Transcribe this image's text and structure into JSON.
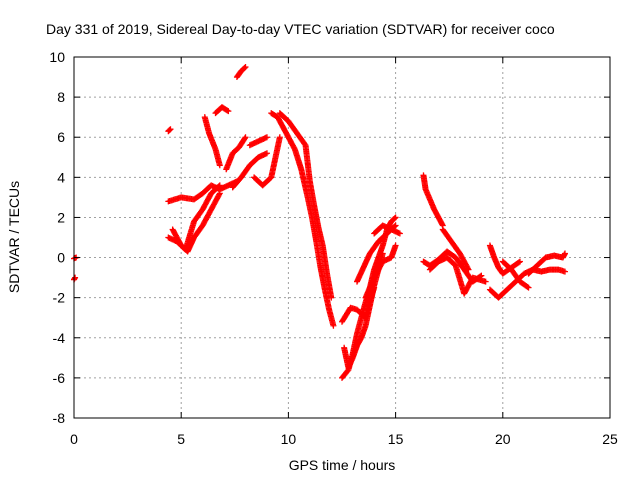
{
  "chart_data": {
    "type": "scatter",
    "title": "Day 331 of 2019, Sidereal Day-to-day VTEC variation (SDTVAR) for receiver coco",
    "xlabel": "GPS time / hours",
    "ylabel": "SDTVAR / TECUs",
    "xlim": [
      0,
      25
    ],
    "ylim": [
      -8,
      10
    ],
    "xticks": [
      0,
      5,
      10,
      15,
      20,
      25
    ],
    "yticks": [
      -8,
      -6,
      -4,
      -2,
      0,
      2,
      4,
      6,
      8,
      10
    ],
    "grid": true,
    "marker": "+",
    "color": "#ff0000",
    "series": [
      {
        "segments": [
          [
            [
              0.0,
              -1.1
            ],
            [
              0.05,
              -1.0
            ]
          ],
          [
            [
              0.0,
              -0.05
            ],
            [
              0.1,
              0.0
            ]
          ],
          [
            [
              4.4,
              6.3
            ],
            [
              4.5,
              6.4
            ]
          ],
          [
            [
              4.4,
              2.8
            ],
            [
              5.0,
              3.0
            ],
            [
              5.6,
              2.9
            ],
            [
              6.0,
              3.2
            ],
            [
              6.4,
              3.6
            ],
            [
              6.8,
              3.4
            ],
            [
              7.2,
              3.6
            ],
            [
              7.6,
              3.8
            ]
          ],
          [
            [
              4.4,
              1.0
            ],
            [
              4.8,
              0.8
            ],
            [
              5.2,
              0.4
            ],
            [
              5.6,
              1.8
            ],
            [
              6.0,
              2.4
            ],
            [
              6.4,
              3.2
            ],
            [
              6.8,
              3.6
            ]
          ],
          [
            [
              4.6,
              1.4
            ],
            [
              5.0,
              0.6
            ],
            [
              5.3,
              0.3
            ],
            [
              5.6,
              1.0
            ],
            [
              6.0,
              1.6
            ],
            [
              6.4,
              2.4
            ],
            [
              6.8,
              3.2
            ]
          ],
          [
            [
              6.1,
              7.0
            ],
            [
              6.3,
              6.2
            ],
            [
              6.6,
              5.4
            ],
            [
              6.8,
              4.6
            ]
          ],
          [
            [
              6.6,
              7.2
            ],
            [
              6.9,
              7.5
            ],
            [
              7.2,
              7.3
            ]
          ],
          [
            [
              7.1,
              4.4
            ],
            [
              7.4,
              5.2
            ],
            [
              7.7,
              5.5
            ],
            [
              8.0,
              6.0
            ]
          ],
          [
            [
              7.6,
              9.0
            ],
            [
              7.8,
              9.3
            ],
            [
              8.0,
              9.5
            ]
          ],
          [
            [
              7.4,
              3.5
            ],
            [
              7.8,
              4.0
            ],
            [
              8.2,
              4.6
            ],
            [
              8.6,
              5.0
            ],
            [
              9.0,
              5.2
            ]
          ],
          [
            [
              8.2,
              5.6
            ],
            [
              8.6,
              5.8
            ],
            [
              9.0,
              6.0
            ]
          ],
          [
            [
              8.4,
              4.0
            ],
            [
              8.8,
              3.6
            ],
            [
              9.2,
              4.0
            ],
            [
              9.6,
              6.0
            ]
          ],
          [
            [
              9.2,
              7.2
            ],
            [
              9.5,
              7.0
            ],
            [
              9.8,
              6.4
            ],
            [
              10.0,
              6.0
            ],
            [
              10.3,
              5.4
            ],
            [
              10.6,
              4.4
            ],
            [
              10.9,
              3.0
            ],
            [
              11.1,
              2.0
            ],
            [
              11.3,
              0.8
            ],
            [
              11.5,
              -0.5
            ],
            [
              11.7,
              -1.6
            ],
            [
              11.9,
              -2.6
            ],
            [
              12.1,
              -3.4
            ]
          ],
          [
            [
              9.6,
              7.2
            ],
            [
              10.0,
              6.8
            ],
            [
              10.4,
              6.2
            ],
            [
              10.8,
              5.6
            ],
            [
              11.0,
              3.8
            ],
            [
              11.2,
              2.6
            ],
            [
              11.4,
              1.5
            ],
            [
              11.6,
              0.6
            ],
            [
              11.8,
              -0.8
            ],
            [
              12.0,
              -2.0
            ]
          ],
          [
            [
              12.5,
              -3.2
            ],
            [
              12.9,
              -2.5
            ],
            [
              13.2,
              -2.6
            ],
            [
              13.6,
              -3.0
            ],
            [
              13.8,
              -2.2
            ],
            [
              14.0,
              -1.5
            ]
          ],
          [
            [
              12.6,
              -4.5
            ],
            [
              12.8,
              -5.5
            ],
            [
              13.0,
              -5.0
            ],
            [
              13.2,
              -4.4
            ],
            [
              13.4,
              -4.0
            ],
            [
              13.6,
              -3.4
            ],
            [
              13.8,
              -2.4
            ],
            [
              14.0,
              -1.4
            ],
            [
              14.2,
              -0.6
            ],
            [
              14.4,
              0.2
            ]
          ],
          [
            [
              12.5,
              -6.0
            ],
            [
              12.8,
              -5.6
            ],
            [
              13.0,
              -4.8
            ],
            [
              13.2,
              -3.8
            ],
            [
              13.5,
              -2.6
            ],
            [
              13.8,
              -1.5
            ],
            [
              14.0,
              -0.6
            ],
            [
              14.2,
              0.0
            ],
            [
              14.4,
              0.6
            ],
            [
              14.6,
              1.4
            ],
            [
              14.8,
              1.8
            ],
            [
              15.0,
              2.0
            ]
          ],
          [
            [
              13.2,
              -1.2
            ],
            [
              13.5,
              -0.5
            ],
            [
              13.8,
              0.2
            ],
            [
              14.2,
              0.8
            ],
            [
              14.6,
              1.2
            ],
            [
              15.0,
              1.6
            ]
          ],
          [
            [
              13.6,
              -2.0
            ],
            [
              14.0,
              -1.0
            ],
            [
              14.4,
              -0.2
            ],
            [
              14.8,
              0.0
            ],
            [
              15.0,
              0.6
            ]
          ],
          [
            [
              14.0,
              1.2
            ],
            [
              14.4,
              1.6
            ],
            [
              14.8,
              1.4
            ],
            [
              15.2,
              1.2
            ]
          ],
          [
            [
              16.3,
              4.1
            ],
            [
              16.4,
              3.4
            ],
            [
              16.6,
              2.9
            ],
            [
              16.8,
              2.4
            ],
            [
              17.0,
              2.0
            ],
            [
              17.2,
              1.6
            ]
          ],
          [
            [
              16.3,
              -0.2
            ],
            [
              16.6,
              -0.4
            ],
            [
              17.0,
              -0.1
            ],
            [
              17.4,
              0.3
            ],
            [
              17.8,
              0.0
            ],
            [
              18.2,
              -0.6
            ],
            [
              18.6,
              -1.2
            ],
            [
              19.0,
              -0.9
            ]
          ],
          [
            [
              17.2,
              1.4
            ],
            [
              17.6,
              0.8
            ],
            [
              18.0,
              0.2
            ],
            [
              18.4,
              -0.6
            ]
          ],
          [
            [
              16.6,
              -0.6
            ],
            [
              17.0,
              -0.2
            ],
            [
              17.4,
              0.0
            ],
            [
              17.8,
              -0.4
            ],
            [
              18.2,
              -1.8
            ],
            [
              18.6,
              -1.0
            ],
            [
              19.2,
              -1.2
            ]
          ],
          [
            [
              19.4,
              0.6
            ],
            [
              19.6,
              0.0
            ],
            [
              19.8,
              -0.5
            ],
            [
              20.0,
              -0.8
            ],
            [
              20.4,
              -0.5
            ],
            [
              20.8,
              -0.2
            ]
          ],
          [
            [
              19.4,
              -1.6
            ],
            [
              19.8,
              -2.0
            ],
            [
              20.2,
              -1.6
            ],
            [
              20.6,
              -1.2
            ],
            [
              21.0,
              -0.8
            ],
            [
              21.4,
              -0.6
            ],
            [
              21.8,
              -0.7
            ],
            [
              22.2,
              -0.6
            ],
            [
              22.6,
              -0.6
            ],
            [
              22.9,
              -0.7
            ]
          ],
          [
            [
              20.0,
              -0.2
            ],
            [
              20.4,
              -0.6
            ],
            [
              20.8,
              -1.2
            ],
            [
              21.2,
              -1.5
            ]
          ],
          [
            [
              21.2,
              -0.8
            ],
            [
              21.6,
              -0.4
            ],
            [
              22.0,
              0.0
            ],
            [
              22.4,
              0.1
            ],
            [
              22.8,
              0.0
            ],
            [
              22.9,
              0.2
            ]
          ]
        ]
      }
    ]
  }
}
